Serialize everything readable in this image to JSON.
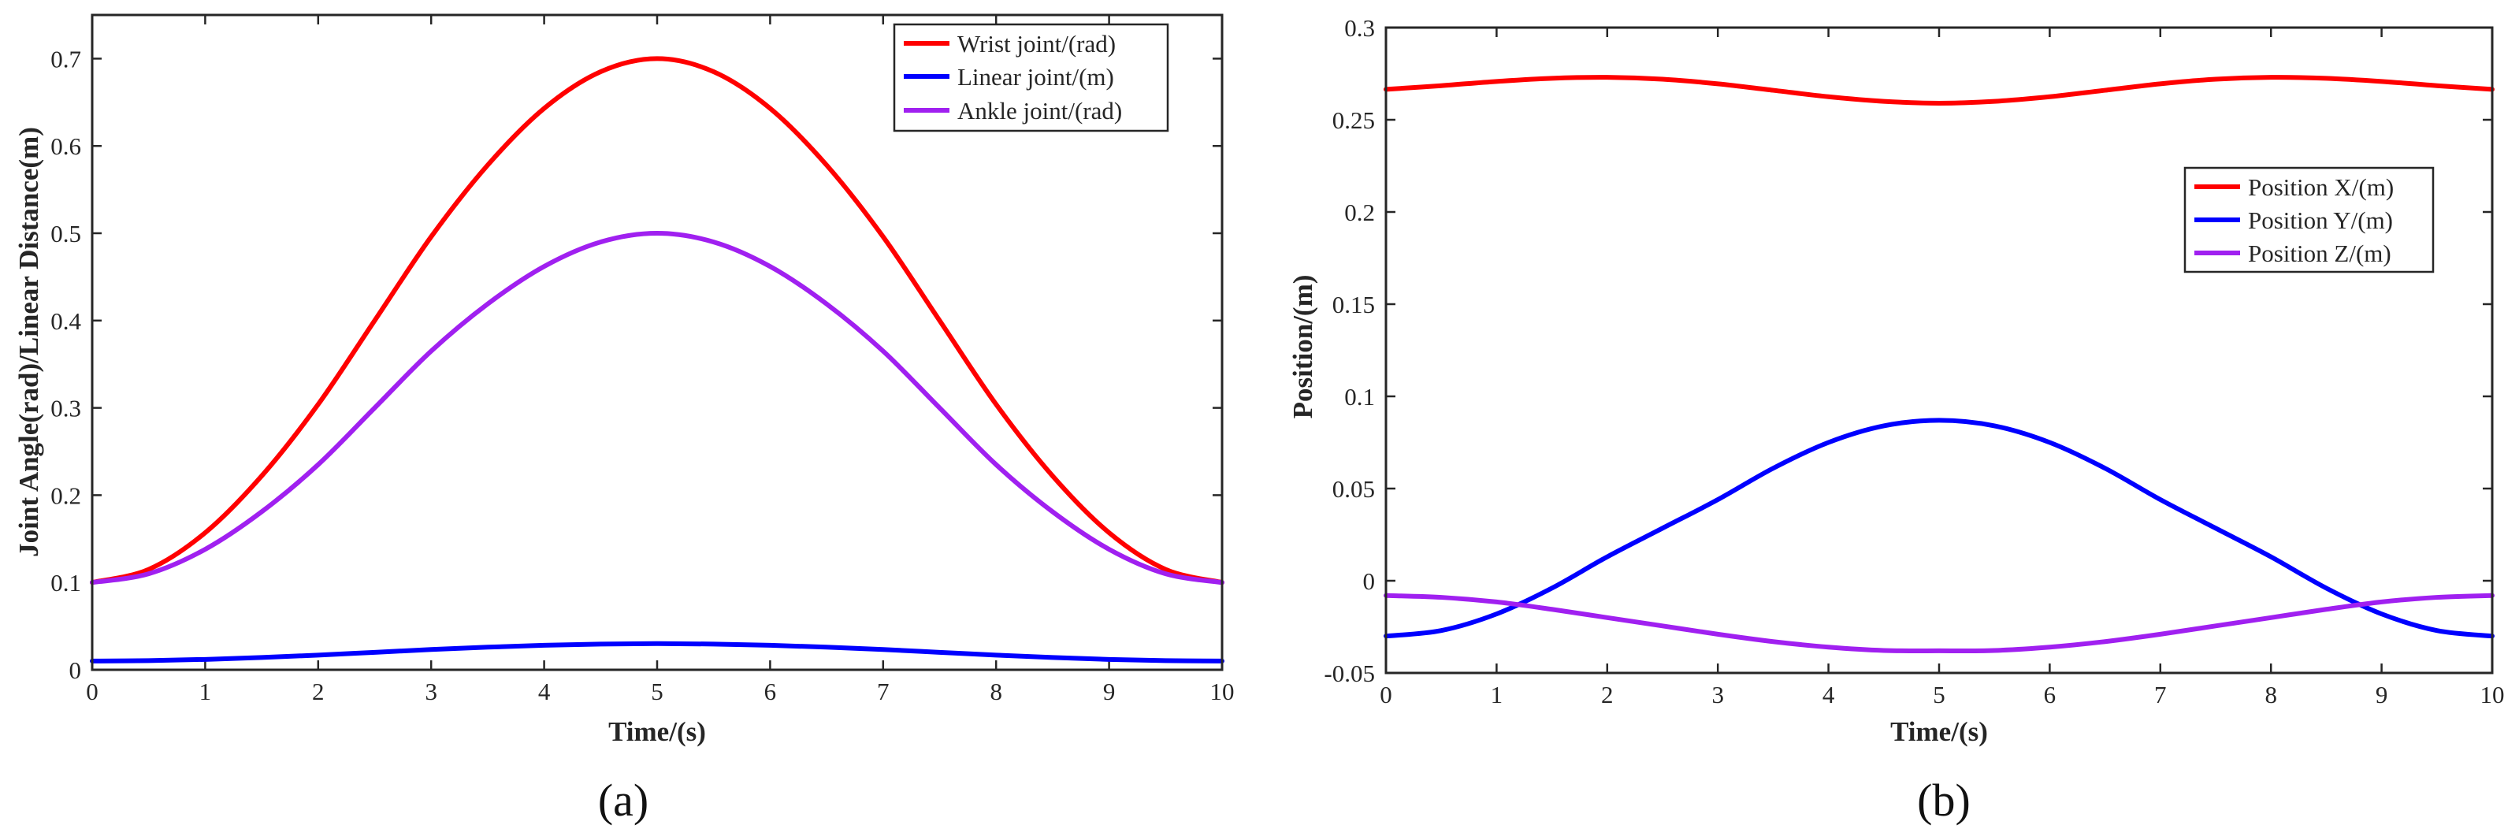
{
  "chart_data": [
    {
      "type": "line",
      "id": "a",
      "caption": "(a)",
      "xlabel": "Time/(s)",
      "ylabel": "Joint Angle(rad)/Linear Distance(m)",
      "xlim": [
        0,
        10
      ],
      "ylim": [
        0,
        0.75
      ],
      "xticks": [
        0,
        1,
        2,
        3,
        4,
        5,
        6,
        7,
        8,
        9,
        10
      ],
      "xtick_labels": [
        "0",
        "1",
        "2",
        "3",
        "4",
        "5",
        "6",
        "7",
        "8",
        "9",
        "10"
      ],
      "yticks": [
        0,
        0.1,
        0.2,
        0.3,
        0.4,
        0.5,
        0.6,
        0.7
      ],
      "ytick_labels": [
        "0",
        "0.1",
        "0.2",
        "0.3",
        "0.4",
        "0.5",
        "0.6",
        "0.7"
      ],
      "legend_position": "top-right",
      "x": [
        0,
        0.5,
        1,
        1.5,
        2,
        2.5,
        3,
        3.5,
        4,
        4.5,
        5,
        5.5,
        6,
        6.5,
        7,
        7.5,
        8,
        8.5,
        9,
        9.5,
        10
      ],
      "series": [
        {
          "name": "Wrist joint/(rad)",
          "color": "#ff0000",
          "values": [
            0.1,
            0.115,
            0.157,
            0.222,
            0.304,
            0.4,
            0.496,
            0.578,
            0.643,
            0.685,
            0.7,
            0.685,
            0.643,
            0.578,
            0.496,
            0.4,
            0.304,
            0.222,
            0.157,
            0.115,
            0.1
          ]
        },
        {
          "name": "Linear joint/(m)",
          "color": "#0000ff",
          "values": [
            0.01,
            0.0105,
            0.0119,
            0.0141,
            0.0168,
            0.02,
            0.0232,
            0.0259,
            0.0281,
            0.0295,
            0.03,
            0.0295,
            0.0281,
            0.0259,
            0.0232,
            0.02,
            0.0168,
            0.0141,
            0.0119,
            0.0105,
            0.01
          ]
        },
        {
          "name": "Ankle joint/(rad)",
          "color": "#a020f0",
          "values": [
            0.1,
            0.11,
            0.138,
            0.181,
            0.235,
            0.3,
            0.365,
            0.419,
            0.462,
            0.49,
            0.5,
            0.49,
            0.462,
            0.419,
            0.365,
            0.3,
            0.235,
            0.181,
            0.138,
            0.11,
            0.1
          ]
        }
      ]
    },
    {
      "type": "line",
      "id": "b",
      "caption": "(b)",
      "xlabel": "Time/(s)",
      "ylabel": "Position/(m)",
      "xlim": [
        0,
        10
      ],
      "ylim": [
        -0.05,
        0.3
      ],
      "xticks": [
        0,
        1,
        2,
        3,
        4,
        5,
        6,
        7,
        8,
        9,
        10
      ],
      "xtick_labels": [
        "0",
        "1",
        "2",
        "3",
        "4",
        "5",
        "6",
        "7",
        "8",
        "9",
        "10"
      ],
      "yticks": [
        -0.05,
        0,
        0.05,
        0.1,
        0.15,
        0.2,
        0.25,
        0.3
      ],
      "ytick_labels": [
        "-0.05",
        "0",
        "0.05",
        "0.1",
        "0.15",
        "0.2",
        "0.25",
        "0.3"
      ],
      "legend_position": "middle-right",
      "x": [
        0,
        0.5,
        1,
        1.5,
        2,
        2.5,
        3,
        3.5,
        4,
        4.5,
        5,
        5.5,
        6,
        6.5,
        7,
        7.5,
        8,
        8.5,
        9,
        9.5,
        10
      ],
      "series": [
        {
          "name": "Position X/(m)",
          "color": "#ff0000",
          "values": [
            0.2665,
            0.2685,
            0.2708,
            0.2725,
            0.273,
            0.272,
            0.2695,
            0.266,
            0.2625,
            0.26,
            0.259,
            0.26,
            0.2625,
            0.266,
            0.2695,
            0.272,
            0.273,
            0.2725,
            0.2708,
            0.2685,
            0.2665
          ]
        },
        {
          "name": "Position Y/(m)",
          "color": "#0000ff",
          "values": [
            -0.03,
            -0.027,
            -0.018,
            -0.004,
            0.013,
            0.0285,
            0.044,
            0.061,
            0.075,
            0.084,
            0.087,
            0.084,
            0.075,
            0.061,
            0.044,
            0.0285,
            0.013,
            -0.004,
            -0.018,
            -0.027,
            -0.03
          ]
        },
        {
          "name": "Position Z/(m)",
          "color": "#a020f0",
          "values": [
            -0.008,
            -0.009,
            -0.0115,
            -0.0155,
            -0.02,
            -0.0245,
            -0.029,
            -0.033,
            -0.036,
            -0.0378,
            -0.038,
            -0.0378,
            -0.036,
            -0.033,
            -0.029,
            -0.0245,
            -0.02,
            -0.0155,
            -0.0115,
            -0.009,
            -0.008
          ]
        }
      ]
    }
  ]
}
